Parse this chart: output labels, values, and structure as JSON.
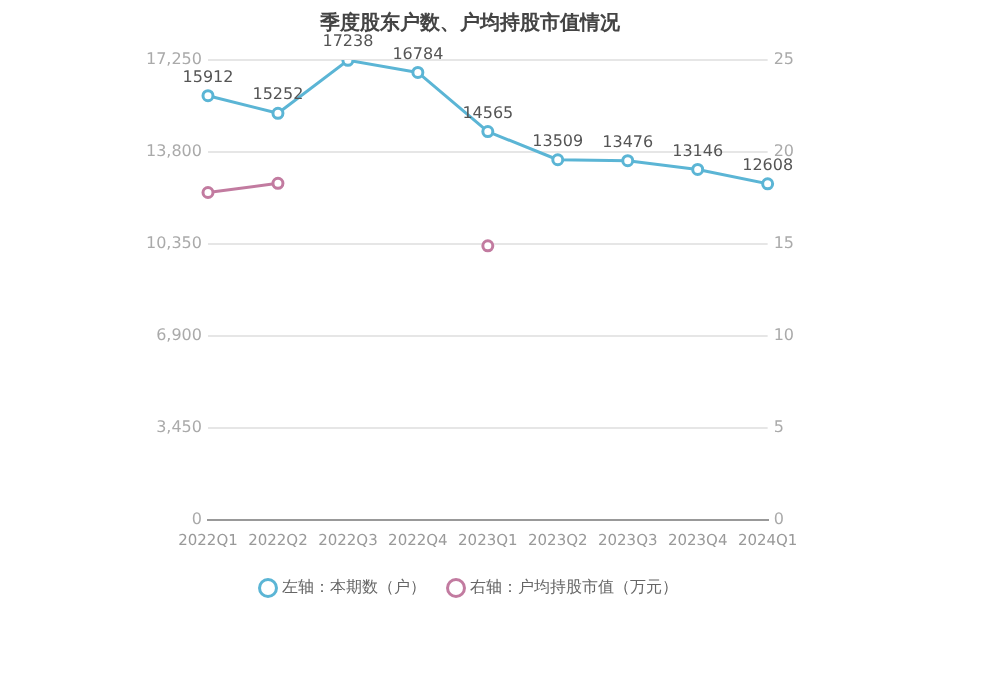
{
  "chart_data": {
    "type": "line",
    "title": "季度股东户数、户均持股市值情况",
    "categories": [
      "2022Q1",
      "2022Q2",
      "2022Q3",
      "2022Q4",
      "2023Q1",
      "2023Q2",
      "2023Q3",
      "2023Q4",
      "2024Q1"
    ],
    "series": [
      {
        "name": "左轴：本期数（户）",
        "color": "#5bb5d5",
        "values": [
          15912,
          15252,
          17238,
          16784,
          14565,
          13509,
          13476,
          13146,
          12608
        ],
        "value_labels": [
          "15912",
          "15252",
          "17238",
          "16784",
          "14565",
          "13509",
          "13476",
          "13146",
          "12608"
        ]
      },
      {
        "name": "右轴：户均持股市值（万元）",
        "color": "#c27ba0",
        "axis": "y2",
        "values": [
          17.8,
          18.3,
          null,
          null,
          14.9,
          null,
          null,
          null,
          null
        ]
      }
    ],
    "ylim": [
      0,
      17250
    ],
    "yticks": [
      0,
      {
        "value": 3450,
        "label": "3,450"
      },
      {
        "value": 6900,
        "label": "6,900"
      },
      {
        "value": 10350,
        "label": "10,350"
      },
      {
        "value": 13800,
        "label": "13,800"
      },
      {
        "value": 17250,
        "label": "17,250"
      }
    ],
    "y2lim": [
      0,
      25
    ],
    "y2ticks": [
      0,
      5,
      10,
      15,
      20,
      25
    ],
    "grid": "y",
    "legend": "bottom",
    "marker": "circle",
    "line_style": "solid"
  }
}
